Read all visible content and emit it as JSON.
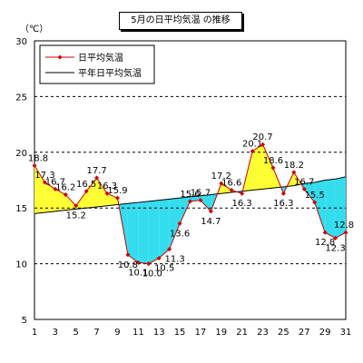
{
  "chart_data": {
    "type": "line",
    "title": "5月の日平均気温 の推移",
    "ylabel": "（℃）",
    "xlabel": "",
    "ylim": [
      5,
      30
    ],
    "yticks": [
      5,
      10,
      15,
      20,
      25,
      30
    ],
    "xlim": [
      1,
      31
    ],
    "xticks": [
      1,
      3,
      5,
      7,
      9,
      11,
      13,
      15,
      17,
      19,
      21,
      23,
      25,
      27,
      29,
      31
    ],
    "grid": "horizontal-dashed",
    "legend_position": "top-left",
    "x": [
      1,
      2,
      3,
      4,
      5,
      6,
      7,
      8,
      9,
      10,
      11,
      12,
      13,
      14,
      15,
      16,
      17,
      18,
      19,
      20,
      21,
      22,
      23,
      24,
      25,
      26,
      27,
      28,
      29,
      30,
      31
    ],
    "series": [
      {
        "name": "日平均気温",
        "color": "#cc0000",
        "marker": "diamond",
        "values": [
          18.8,
          17.3,
          16.7,
          16.2,
          15.2,
          16.5,
          17.7,
          16.3,
          15.9,
          10.8,
          10.1,
          10.0,
          10.5,
          11.3,
          13.6,
          15.6,
          15.7,
          14.7,
          17.2,
          16.6,
          16.3,
          20.1,
          20.7,
          18.6,
          16.3,
          18.2,
          16.7,
          15.5,
          12.8,
          12.3,
          12.8
        ]
      },
      {
        "name": "平年日平均気温",
        "color": "#000000",
        "marker": "none",
        "values": [
          14.5,
          14.6,
          14.7,
          14.8,
          14.9,
          15.0,
          15.1,
          15.2,
          15.3,
          15.4,
          15.5,
          15.6,
          15.7,
          15.8,
          15.9,
          16.0,
          16.1,
          16.2,
          16.3,
          16.4,
          16.5,
          16.6,
          16.7,
          16.8,
          16.9,
          17.0,
          17.2,
          17.3,
          17.5,
          17.6,
          17.8
        ]
      }
    ],
    "fill_above_color": "#ffff33",
    "fill_below_color": "#33ddee"
  }
}
